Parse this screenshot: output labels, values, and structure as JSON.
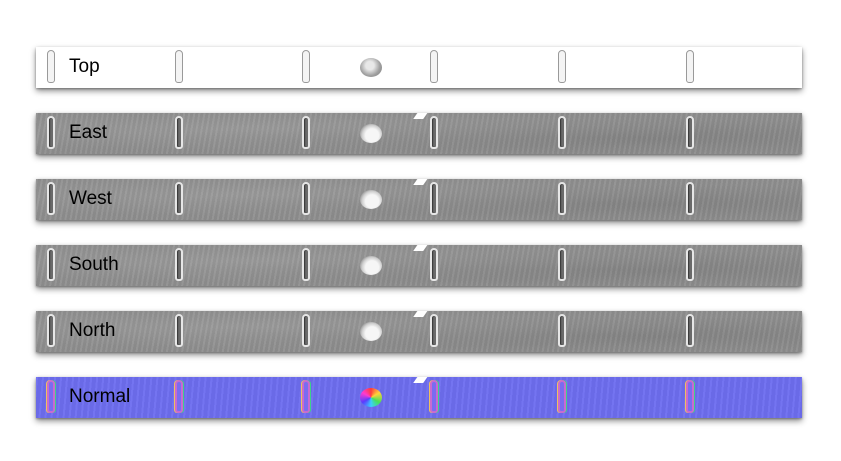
{
  "strips": {
    "top": {
      "label": "Top"
    },
    "east": {
      "label": "East"
    },
    "west": {
      "label": "West"
    },
    "south": {
      "label": "South"
    },
    "north": {
      "label": "North"
    },
    "normal": {
      "label": "Normal"
    }
  },
  "colors": {
    "top_background": "#ffffff",
    "metal_background": "#8f8f8f",
    "normal_map_background": "#6e6ef0"
  },
  "icons": [
    "slot-cutout-icon",
    "dimple-icon"
  ]
}
